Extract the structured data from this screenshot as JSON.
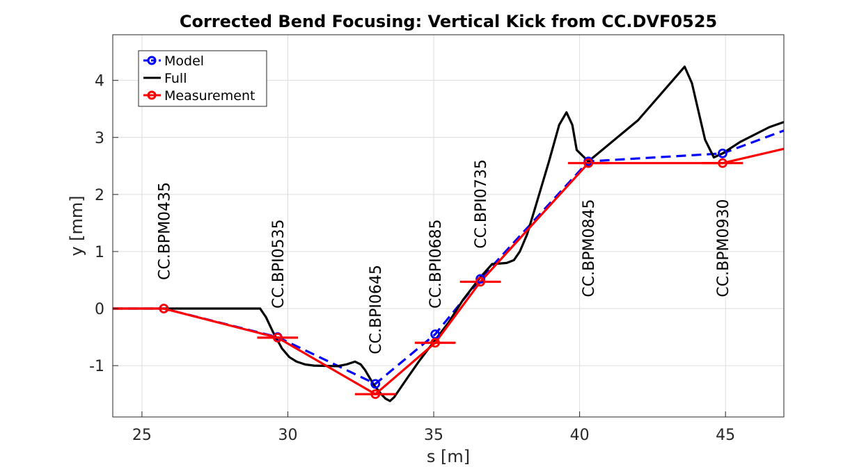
{
  "chart_data": {
    "type": "line",
    "title": "Corrected Bend Focusing: Vertical Kick from CC.DVF0525",
    "xlabel": "s [m]",
    "ylabel": "y [mm]",
    "xlim": [
      24,
      47
    ],
    "ylim": [
      -1.9,
      4.8
    ],
    "xticks": [
      25,
      30,
      35,
      40,
      45
    ],
    "yticks": [
      -1,
      0,
      1,
      2,
      3,
      4
    ],
    "xtick_labels": [
      "25",
      "30",
      "35",
      "40",
      "45"
    ],
    "ytick_labels": [
      "-1",
      "0",
      "1",
      "2",
      "3",
      "4"
    ],
    "grid": true,
    "legend_position": "top-left",
    "series": [
      {
        "name": "Model",
        "color": "#0000ff",
        "style": "dashed",
        "marker": "circle",
        "x": [
          24,
          25.75,
          29.65,
          33.0,
          35.05,
          36.6,
          40.3,
          44.9,
          47
        ],
        "y": [
          0,
          0,
          -0.5,
          -1.32,
          -0.45,
          0.52,
          2.58,
          2.72,
          3.12
        ]
      },
      {
        "name": "Full",
        "color": "#000000",
        "style": "solid",
        "marker": "none",
        "x": [
          24,
          29.05,
          29.25,
          29.5,
          29.8,
          30.05,
          30.3,
          30.6,
          30.9,
          31.7,
          32.0,
          32.3,
          32.5,
          32.65,
          32.95,
          33.2,
          33.35,
          33.5,
          33.65,
          34.05,
          34.5,
          35.05,
          35.5,
          36.0,
          36.6,
          37.0,
          37.5,
          37.75,
          37.95,
          38.2,
          38.45,
          38.95,
          39.3,
          39.55,
          39.75,
          39.9,
          40.3,
          42.0,
          43.6,
          43.85,
          44.3,
          44.6,
          44.9,
          45.5,
          46.5,
          47
        ],
        "y": [
          0,
          0,
          -0.15,
          -0.42,
          -0.7,
          -0.85,
          -0.93,
          -0.98,
          -1.0,
          -1.01,
          -0.98,
          -0.93,
          -0.98,
          -1.08,
          -1.34,
          -1.5,
          -1.58,
          -1.62,
          -1.55,
          -1.25,
          -0.92,
          -0.55,
          -0.25,
          0.15,
          0.55,
          0.78,
          0.8,
          0.85,
          1.0,
          1.3,
          1.72,
          2.58,
          3.22,
          3.44,
          3.22,
          2.78,
          2.58,
          3.3,
          4.24,
          3.95,
          2.96,
          2.65,
          2.72,
          2.92,
          3.18,
          3.27
        ]
      },
      {
        "name": "Measurement",
        "color": "#ff0000",
        "style": "solid",
        "marker": "circle",
        "x": [
          24,
          25.75,
          29.65,
          33.0,
          35.05,
          36.6,
          40.3,
          44.9,
          47
        ],
        "y": [
          0,
          0,
          -0.51,
          -1.5,
          -0.6,
          0.47,
          2.55,
          2.55,
          2.8
        ],
        "error_x_halfwidth": [
          0,
          0,
          0.7,
          0.7,
          0.7,
          0.7,
          0.7,
          0.7,
          0
        ],
        "error_bars_at": [
          1,
          2,
          3,
          4,
          5,
          6,
          7
        ]
      }
    ],
    "bpm_labels": [
      {
        "text": "CC.BPM0435",
        "x": 25.75,
        "y": 0.5
      },
      {
        "text": "CC.BPI0535",
        "x": 29.65,
        "y": 0.0
      },
      {
        "text": "CC.BPI0645",
        "x": 33.0,
        "y": -0.8
      },
      {
        "text": "CC.BPI0685",
        "x": 35.05,
        "y": 0.0
      },
      {
        "text": "CC.BPI0735",
        "x": 36.6,
        "y": 1.05
      },
      {
        "text": "CC.BPM0845",
        "x": 40.3,
        "y": 0.2
      },
      {
        "text": "CC.BPM0930",
        "x": 44.9,
        "y": 0.2
      }
    ]
  }
}
